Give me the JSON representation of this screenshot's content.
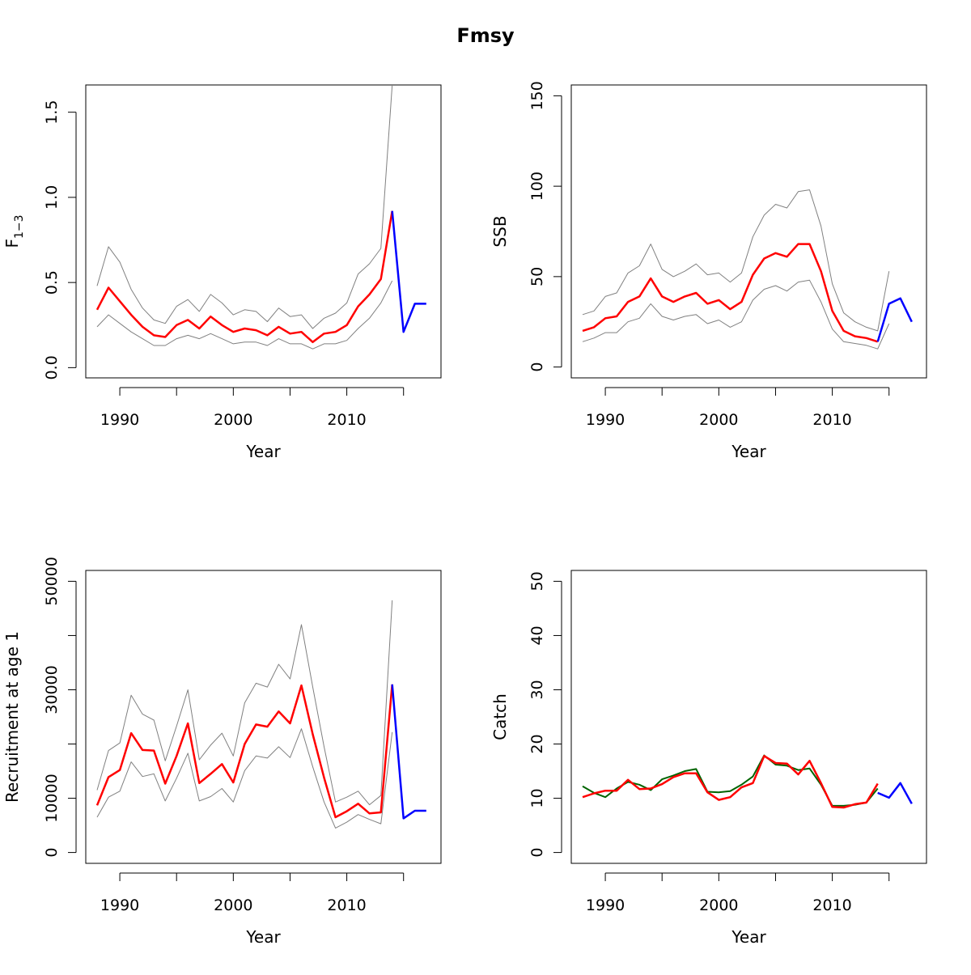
{
  "figure": {
    "title": "Fmsy"
  },
  "colors": {
    "estimate": "#ff0000",
    "bounds": "#808080",
    "projection": "#0000ff",
    "observed": "#006400",
    "axis": "#000000"
  },
  "chart_data": [
    {
      "id": "f13",
      "type": "line",
      "title": "",
      "xlabel": "Year",
      "ylabel": "F",
      "ylabel_sub": "1−3",
      "xlim": [
        1987,
        2018.3
      ],
      "ylim": [
        -0.06,
        1.66
      ],
      "xticks": [
        1990,
        1995,
        2000,
        2005,
        2010,
        2015
      ],
      "xtick_labels": [
        "1990",
        "",
        "2000",
        "",
        "2010",
        ""
      ],
      "yticks": [
        0,
        0.5,
        1.0,
        1.5
      ],
      "ytick_labels": [
        "0.0",
        "0.5",
        "1.0",
        "1.5"
      ],
      "series": [
        {
          "role": "upper",
          "color": "#808080",
          "width": 1,
          "x": [
            1988,
            1989,
            1990,
            1991,
            1992,
            1993,
            1994,
            1995,
            1996,
            1997,
            1998,
            1999,
            2000,
            2001,
            2002,
            2003,
            2004,
            2005,
            2006,
            2007,
            2008,
            2009,
            2010,
            2011,
            2012,
            2013,
            2014
          ],
          "y": [
            0.48,
            0.71,
            0.62,
            0.46,
            0.35,
            0.28,
            0.26,
            0.36,
            0.4,
            0.33,
            0.43,
            0.38,
            0.31,
            0.34,
            0.33,
            0.27,
            0.35,
            0.3,
            0.31,
            0.23,
            0.29,
            0.32,
            0.38,
            0.55,
            0.61,
            0.7,
            1.66
          ]
        },
        {
          "role": "lower",
          "color": "#808080",
          "width": 1,
          "x": [
            1988,
            1989,
            1990,
            1991,
            1992,
            1993,
            1994,
            1995,
            1996,
            1997,
            1998,
            1999,
            2000,
            2001,
            2002,
            2003,
            2004,
            2005,
            2006,
            2007,
            2008,
            2009,
            2010,
            2011,
            2012,
            2013,
            2014
          ],
          "y": [
            0.24,
            0.31,
            0.26,
            0.21,
            0.17,
            0.13,
            0.13,
            0.17,
            0.19,
            0.17,
            0.2,
            0.17,
            0.14,
            0.15,
            0.15,
            0.13,
            0.17,
            0.14,
            0.14,
            0.11,
            0.14,
            0.14,
            0.16,
            0.23,
            0.29,
            0.38,
            0.51
          ]
        },
        {
          "role": "estimate",
          "color": "#ff0000",
          "width": 2.5,
          "x": [
            1988,
            1989,
            1990,
            1991,
            1992,
            1993,
            1994,
            1995,
            1996,
            1997,
            1998,
            1999,
            2000,
            2001,
            2002,
            2003,
            2004,
            2005,
            2006,
            2007,
            2008,
            2009,
            2010,
            2011,
            2012,
            2013,
            2014
          ],
          "y": [
            0.34,
            0.47,
            0.39,
            0.31,
            0.24,
            0.19,
            0.18,
            0.25,
            0.28,
            0.23,
            0.3,
            0.25,
            0.21,
            0.23,
            0.22,
            0.19,
            0.24,
            0.2,
            0.21,
            0.15,
            0.2,
            0.21,
            0.25,
            0.36,
            0.43,
            0.52,
            0.92
          ]
        },
        {
          "role": "projection",
          "color": "#0000ff",
          "width": 2.5,
          "x": [
            2014,
            2015,
            2016,
            2017
          ],
          "y": [
            0.92,
            0.21,
            0.375,
            0.375
          ]
        }
      ]
    },
    {
      "id": "ssb",
      "type": "line",
      "title": "",
      "xlabel": "Year",
      "ylabel": "SSB",
      "xlim": [
        1987,
        2018.3
      ],
      "ylim": [
        -6,
        156
      ],
      "xticks": [
        1990,
        1995,
        2000,
        2005,
        2010,
        2015
      ],
      "xtick_labels": [
        "1990",
        "",
        "2000",
        "",
        "2010",
        ""
      ],
      "yticks": [
        0,
        50,
        100,
        150
      ],
      "ytick_labels": [
        "0",
        "50",
        "100",
        "150"
      ],
      "series": [
        {
          "role": "upper",
          "color": "#808080",
          "width": 1,
          "x": [
            1988,
            1989,
            1990,
            1991,
            1992,
            1993,
            1994,
            1995,
            1996,
            1997,
            1998,
            1999,
            2000,
            2001,
            2002,
            2003,
            2004,
            2005,
            2006,
            2007,
            2008,
            2009,
            2010,
            2011,
            2012,
            2013,
            2014,
            2015
          ],
          "y": [
            29,
            31,
            39,
            41,
            52,
            56,
            68,
            54,
            50,
            53,
            57,
            51,
            52,
            47,
            52,
            72,
            84,
            90,
            88,
            97,
            98,
            78,
            46,
            30,
            25,
            22,
            20,
            53
          ]
        },
        {
          "role": "lower",
          "color": "#808080",
          "width": 1,
          "x": [
            1988,
            1989,
            1990,
            1991,
            1992,
            1993,
            1994,
            1995,
            1996,
            1997,
            1998,
            1999,
            2000,
            2001,
            2002,
            2003,
            2004,
            2005,
            2006,
            2007,
            2008,
            2009,
            2010,
            2011,
            2012,
            2013,
            2014,
            2015
          ],
          "y": [
            14,
            16,
            19,
            19,
            25,
            27,
            35,
            28,
            26,
            28,
            29,
            24,
            26,
            22,
            25,
            37,
            43,
            45,
            42,
            47,
            48,
            36,
            21,
            14,
            13,
            12,
            10,
            24
          ]
        },
        {
          "role": "estimate",
          "color": "#ff0000",
          "width": 2.5,
          "x": [
            1988,
            1989,
            1990,
            1991,
            1992,
            1993,
            1994,
            1995,
            1996,
            1997,
            1998,
            1999,
            2000,
            2001,
            2002,
            2003,
            2004,
            2005,
            2006,
            2007,
            2008,
            2009,
            2010,
            2011,
            2012,
            2013,
            2014
          ],
          "y": [
            20,
            22,
            27,
            28,
            36,
            39,
            49,
            39,
            36,
            39,
            41,
            35,
            37,
            32,
            36,
            51,
            60,
            63,
            61,
            68,
            68,
            53,
            31,
            20,
            17,
            16,
            14
          ]
        },
        {
          "role": "projection",
          "color": "#0000ff",
          "width": 2.5,
          "x": [
            2014,
            2015,
            2016,
            2017
          ],
          "y": [
            14,
            35,
            38,
            25
          ]
        }
      ]
    },
    {
      "id": "rec",
      "type": "line",
      "title": "",
      "xlabel": "Year",
      "ylabel": "Recruitment at age 1",
      "xlim": [
        1987,
        2018.3
      ],
      "ylim": [
        -2000,
        52000
      ],
      "xticks": [
        1990,
        1995,
        2000,
        2005,
        2010,
        2015
      ],
      "xtick_labels": [
        "1990",
        "",
        "2000",
        "",
        "2010",
        ""
      ],
      "yticks": [
        0,
        10000,
        20000,
        30000,
        40000,
        50000
      ],
      "ytick_labels": [
        "0",
        "10000",
        "",
        "30000",
        "",
        "50000"
      ],
      "series": [
        {
          "role": "upper",
          "color": "#808080",
          "width": 1,
          "x": [
            1988,
            1989,
            1990,
            1991,
            1992,
            1993,
            1994,
            1995,
            1996,
            1997,
            1998,
            1999,
            2000,
            2001,
            2002,
            2003,
            2004,
            2005,
            2006,
            2007,
            2008,
            2009,
            2010,
            2011,
            2012,
            2013,
            2014
          ],
          "y": [
            11500,
            18800,
            20200,
            29000,
            25500,
            24400,
            16900,
            23300,
            30000,
            17100,
            19800,
            22000,
            17800,
            27600,
            31200,
            30500,
            34700,
            32000,
            42000,
            30500,
            19500,
            9300,
            10200,
            11300,
            8800,
            10500,
            46500
          ]
        },
        {
          "role": "lower",
          "color": "#808080",
          "width": 1,
          "x": [
            1988,
            1989,
            1990,
            1991,
            1992,
            1993,
            1994,
            1995,
            1996,
            1997,
            1998,
            1999,
            2000,
            2001,
            2002,
            2003,
            2004,
            2005,
            2006,
            2007,
            2008,
            2009,
            2010,
            2011,
            2012,
            2013,
            2014
          ],
          "y": [
            6500,
            10200,
            11300,
            16700,
            14000,
            14500,
            9500,
            13700,
            18300,
            9500,
            10300,
            11800,
            9300,
            15100,
            17800,
            17400,
            19500,
            17500,
            22800,
            15800,
            9300,
            4500,
            5600,
            7000,
            6100,
            5300,
            22200
          ]
        },
        {
          "role": "estimate",
          "color": "#ff0000",
          "width": 2.5,
          "x": [
            1988,
            1989,
            1990,
            1991,
            1992,
            1993,
            1994,
            1995,
            1996,
            1997,
            1998,
            1999,
            2000,
            2001,
            2002,
            2003,
            2004,
            2005,
            2006,
            2007,
            2008,
            2009,
            2010,
            2011,
            2012,
            2013,
            2014
          ],
          "y": [
            8700,
            13900,
            15200,
            22000,
            18900,
            18800,
            12700,
            17800,
            23800,
            12800,
            14500,
            16300,
            12900,
            20000,
            23600,
            23200,
            26000,
            23800,
            30800,
            21800,
            13800,
            6500,
            7600,
            9000,
            7200,
            7400,
            31000
          ]
        },
        {
          "role": "projection",
          "color": "#0000ff",
          "width": 2.5,
          "x": [
            2014,
            2015,
            2016,
            2017
          ],
          "y": [
            31000,
            6300,
            7700,
            7700
          ]
        }
      ]
    },
    {
      "id": "catch",
      "type": "line",
      "title": "",
      "xlabel": "Year",
      "ylabel": "Catch",
      "xlim": [
        1987,
        2018.3
      ],
      "ylim": [
        -2,
        52
      ],
      "xticks": [
        1990,
        1995,
        2000,
        2005,
        2010,
        2015
      ],
      "xtick_labels": [
        "1990",
        "",
        "2000",
        "",
        "2010",
        ""
      ],
      "yticks": [
        0,
        10,
        20,
        30,
        40,
        50
      ],
      "ytick_labels": [
        "0",
        "10",
        "20",
        "30",
        "40",
        "50"
      ],
      "series": [
        {
          "role": "observed",
          "color": "#006400",
          "width": 2,
          "x": [
            1988,
            1989,
            1990,
            1991,
            1992,
            1993,
            1994,
            1995,
            1996,
            1997,
            1998,
            1999,
            2000,
            2001,
            2002,
            2003,
            2004,
            2005,
            2006,
            2007,
            2008,
            2009,
            2010,
            2011,
            2012,
            2013,
            2014
          ],
          "y": [
            12.2,
            11.0,
            10.2,
            11.8,
            13.0,
            12.5,
            11.5,
            13.5,
            14.2,
            15.0,
            15.4,
            11.2,
            11.1,
            11.3,
            12.5,
            14.0,
            17.9,
            16.2,
            16.0,
            15.2,
            15.5,
            12.5,
            8.6,
            8.6,
            8.8,
            9.2,
            11.8
          ]
        },
        {
          "role": "estimate",
          "color": "#ff0000",
          "width": 2.5,
          "x": [
            1988,
            1989,
            1990,
            1991,
            1992,
            1993,
            1994,
            1995,
            1996,
            1997,
            1998,
            1999,
            2000,
            2001,
            2002,
            2003,
            2004,
            2005,
            2006,
            2007,
            2008,
            2009,
            2010,
            2011,
            2012,
            2013,
            2014
          ],
          "y": [
            10.2,
            10.9,
            11.4,
            11.4,
            13.4,
            11.7,
            11.8,
            12.6,
            13.9,
            14.6,
            14.6,
            11.1,
            9.7,
            10.2,
            12.0,
            12.8,
            17.8,
            16.5,
            16.4,
            14.4,
            16.9,
            12.8,
            8.4,
            8.3,
            8.9,
            9.2,
            12.7
          ]
        },
        {
          "role": "projection",
          "color": "#0000ff",
          "width": 2.5,
          "x": [
            2014,
            2015,
            2016,
            2017
          ],
          "y": [
            11.0,
            10.1,
            12.8,
            9.0
          ]
        }
      ]
    }
  ]
}
